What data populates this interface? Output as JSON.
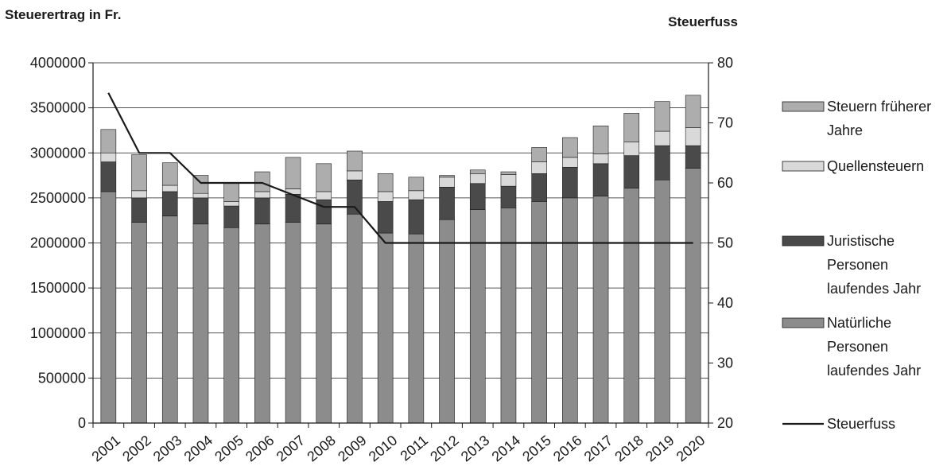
{
  "chart_data": {
    "type": "bar",
    "stacked": true,
    "title_left": "Steuerertrag in Fr.",
    "title_right": "Steuerfuss",
    "categories": [
      "2001",
      "2002",
      "2003",
      "2004",
      "2005",
      "2006",
      "2007",
      "2008",
      "2009",
      "2010",
      "2011",
      "2012",
      "2013",
      "2014",
      "2015",
      "2016",
      "2017",
      "2018",
      "2019",
      "2020"
    ],
    "y_left": {
      "min": 0,
      "max": 4000000,
      "step": 500000,
      "tick_labels": [
        "0",
        "500000",
        "1000000",
        "1500000",
        "2000000",
        "2500000",
        "3000000",
        "3500000",
        "4000000"
      ]
    },
    "y_right": {
      "min": 20,
      "max": 80,
      "step": 10,
      "tick_labels": [
        "20",
        "30",
        "40",
        "50",
        "60",
        "70",
        "80"
      ]
    },
    "grid": true,
    "legend_position": "right",
    "series": [
      {
        "name": "Natürliche Personen laufendes Jahr",
        "color": "#8c8c8c",
        "axis": "left",
        "values": [
          2570000,
          2230000,
          2300000,
          2210000,
          2170000,
          2210000,
          2230000,
          2210000,
          2320000,
          2110000,
          2100000,
          2260000,
          2370000,
          2390000,
          2460000,
          2500000,
          2520000,
          2610000,
          2700000,
          2830000
        ]
      },
      {
        "name": "Juristische Personen laufendes Jahr",
        "color": "#4a4a4a",
        "axis": "left",
        "values": [
          330000,
          270000,
          270000,
          290000,
          240000,
          290000,
          310000,
          270000,
          380000,
          350000,
          380000,
          360000,
          290000,
          240000,
          310000,
          340000,
          360000,
          360000,
          380000,
          250000
        ]
      },
      {
        "name": "Quellensteuern",
        "color": "#d9d9d9",
        "axis": "left",
        "values": [
          100000,
          80000,
          70000,
          50000,
          50000,
          70000,
          60000,
          90000,
          100000,
          110000,
          100000,
          110000,
          110000,
          130000,
          130000,
          110000,
          110000,
          150000,
          160000,
          200000
        ]
      },
      {
        "name": "Steuern früherer Jahre",
        "color": "#adadad",
        "axis": "left",
        "values": [
          260000,
          400000,
          250000,
          200000,
          200000,
          220000,
          350000,
          310000,
          220000,
          200000,
          150000,
          20000,
          40000,
          30000,
          160000,
          220000,
          310000,
          320000,
          330000,
          360000
        ]
      },
      {
        "name": "Steuerfuss",
        "type": "line",
        "color": "#1a1a1a",
        "axis": "right",
        "values": [
          75,
          65,
          65,
          60,
          60,
          60,
          58,
          56,
          56,
          50,
          50,
          50,
          50,
          50,
          50,
          50,
          50,
          50,
          50,
          50
        ]
      }
    ]
  },
  "legend": [
    {
      "key": "fy",
      "lines": [
        "Steuern früherer",
        "Jahre"
      ]
    },
    {
      "key": "q",
      "lines": [
        "Quellensteuern"
      ]
    },
    {
      "key": "jp",
      "lines": [
        "Juristische",
        "Personen",
        "laufendes Jahr"
      ]
    },
    {
      "key": "np",
      "lines": [
        "Natürliche",
        "Personen",
        "laufendes Jahr"
      ]
    },
    {
      "key": "sf",
      "lines": [
        "Steuerfuss"
      ]
    }
  ]
}
